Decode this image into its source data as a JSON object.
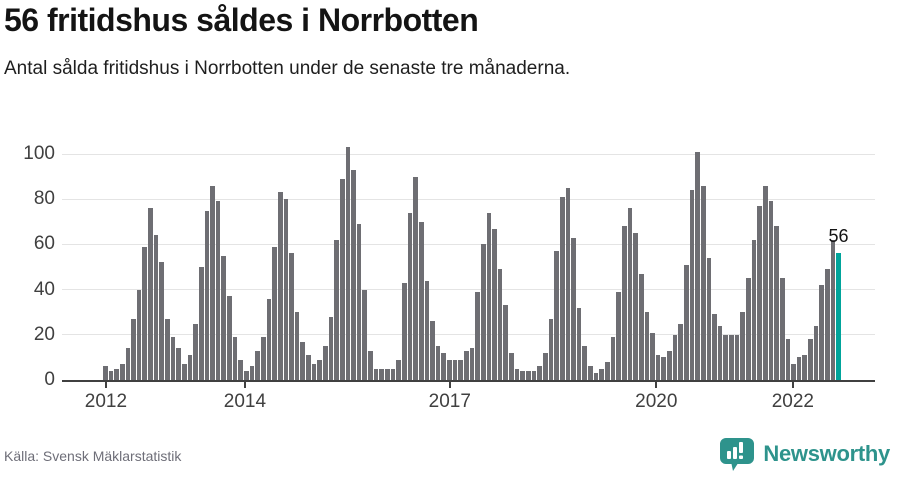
{
  "header": {
    "title": "56 fritidshus såldes i Norrbotten",
    "subtitle": "Antal sålda fritidshus i Norrbotten under de senaste tre månaderna."
  },
  "chart_data": {
    "type": "bar",
    "title": "56 fritidshus såldes i Norrbotten",
    "ylabel": "",
    "xlabel": "",
    "ylim": [
      0,
      100
    ],
    "grid": true,
    "y_ticks": [
      0,
      20,
      40,
      60,
      80,
      100
    ],
    "x_ticks": [
      {
        "label": "2012",
        "pos": 0.054
      },
      {
        "label": "2014",
        "pos": 0.225
      },
      {
        "label": "2017",
        "pos": 0.477
      },
      {
        "label": "2020",
        "pos": 0.731
      },
      {
        "label": "2022",
        "pos": 0.899
      }
    ],
    "period": "monthly, 2012 to 2022",
    "values": [
      6,
      4,
      5,
      7,
      14,
      27,
      40,
      59,
      76,
      64,
      52,
      27,
      19,
      14,
      7,
      11,
      25,
      50,
      75,
      86,
      79,
      55,
      37,
      19,
      9,
      4,
      6,
      13,
      19,
      36,
      59,
      83,
      80,
      56,
      30,
      17,
      11,
      7,
      9,
      15,
      28,
      62,
      89,
      103,
      93,
      69,
      40,
      13,
      5,
      5,
      5,
      5,
      9,
      43,
      74,
      90,
      70,
      44,
      26,
      15,
      12,
      9,
      9,
      9,
      13,
      14,
      39,
      60,
      74,
      67,
      49,
      33,
      12,
      5,
      4,
      4,
      4,
      6,
      12,
      27,
      57,
      81,
      85,
      63,
      32,
      15,
      6,
      3,
      5,
      8,
      19,
      39,
      68,
      76,
      65,
      47,
      30,
      21,
      11,
      10,
      13,
      20,
      25,
      51,
      84,
      101,
      86,
      54,
      29,
      24,
      20,
      20,
      20,
      30,
      45,
      62,
      77,
      86,
      79,
      68,
      45,
      18,
      7,
      10,
      11,
      18,
      24,
      42,
      49,
      62,
      56
    ],
    "bar_color": "#6e6e73",
    "highlight": {
      "index": 130,
      "label": "56",
      "color": "#00a49b"
    }
  },
  "footer": {
    "source": "Källa: Svensk Mäklarstatistik",
    "brand": "Newsworthy",
    "brand_color": "#2e938c"
  }
}
